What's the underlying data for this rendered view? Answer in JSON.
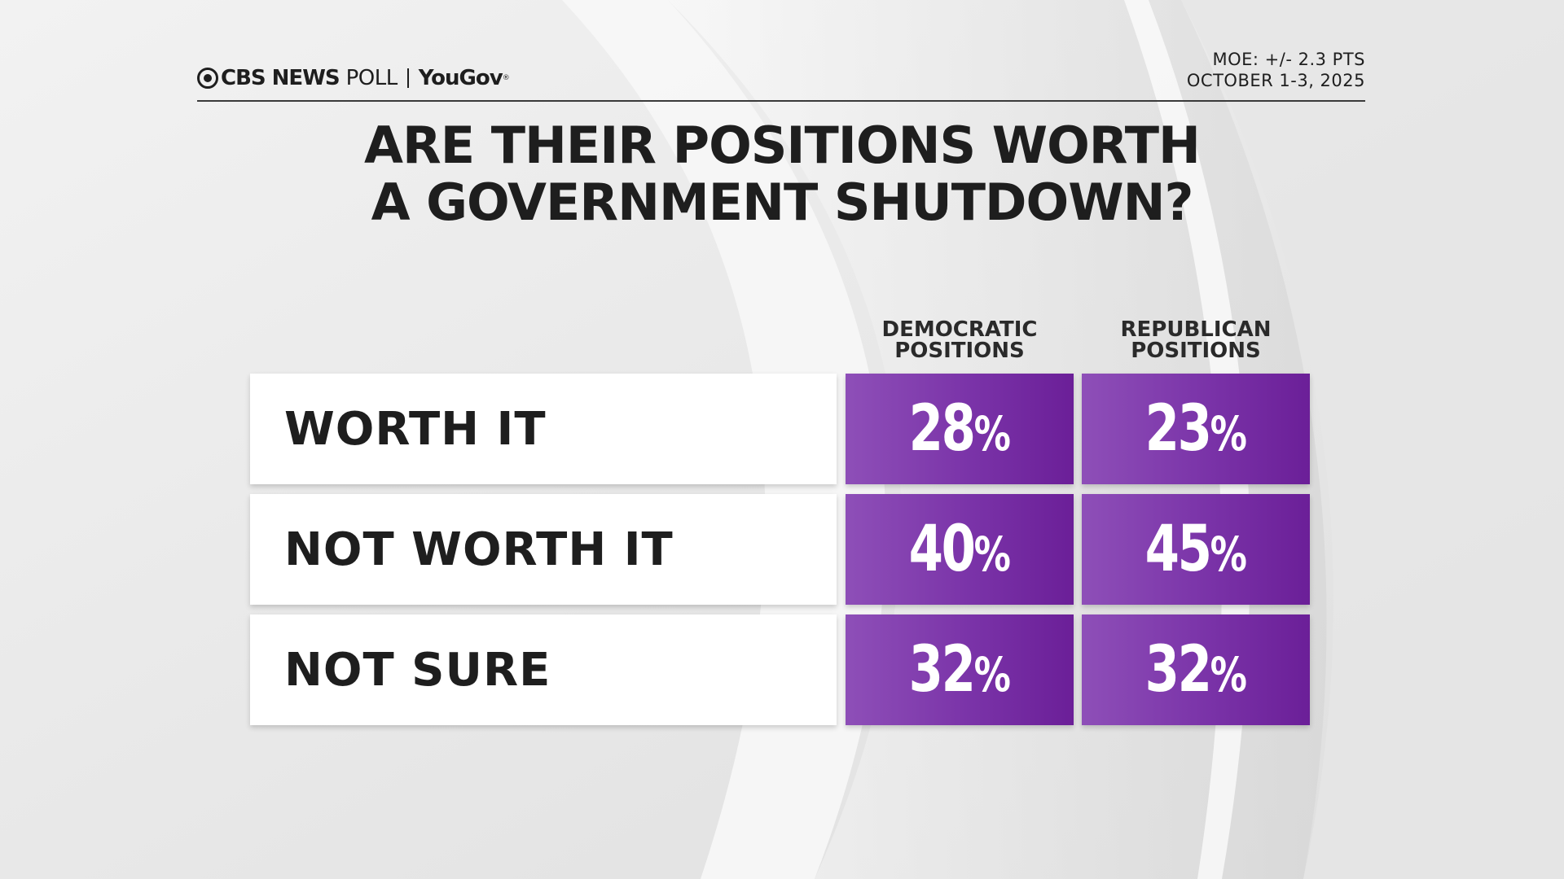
{
  "header": {
    "brand": "CBS NEWS",
    "poll": "POLL",
    "partner": "YouGov",
    "moe": "MOE: +/- 2.3 PTS",
    "dates": "OCTOBER 1-3, 2025"
  },
  "colors": {
    "cell_start": "#8e4fb8",
    "cell_end": "#6b1f98",
    "text_dark": "#1e1e1e"
  },
  "chart_data": {
    "type": "table",
    "title": [
      "ARE THEIR POSITIONS WORTH",
      "A GOVERNMENT SHUTDOWN?"
    ],
    "columns": [
      {
        "label": [
          "DEMOCRATIC",
          "POSITIONS"
        ]
      },
      {
        "label": [
          "REPUBLICAN",
          "POSITIONS"
        ]
      }
    ],
    "rows": [
      {
        "label": "WORTH IT",
        "values": [
          28,
          23
        ]
      },
      {
        "label": "NOT WORTH IT",
        "values": [
          40,
          45
        ]
      },
      {
        "label": "NOT SURE",
        "values": [
          32,
          32
        ]
      }
    ],
    "unit": "%"
  }
}
